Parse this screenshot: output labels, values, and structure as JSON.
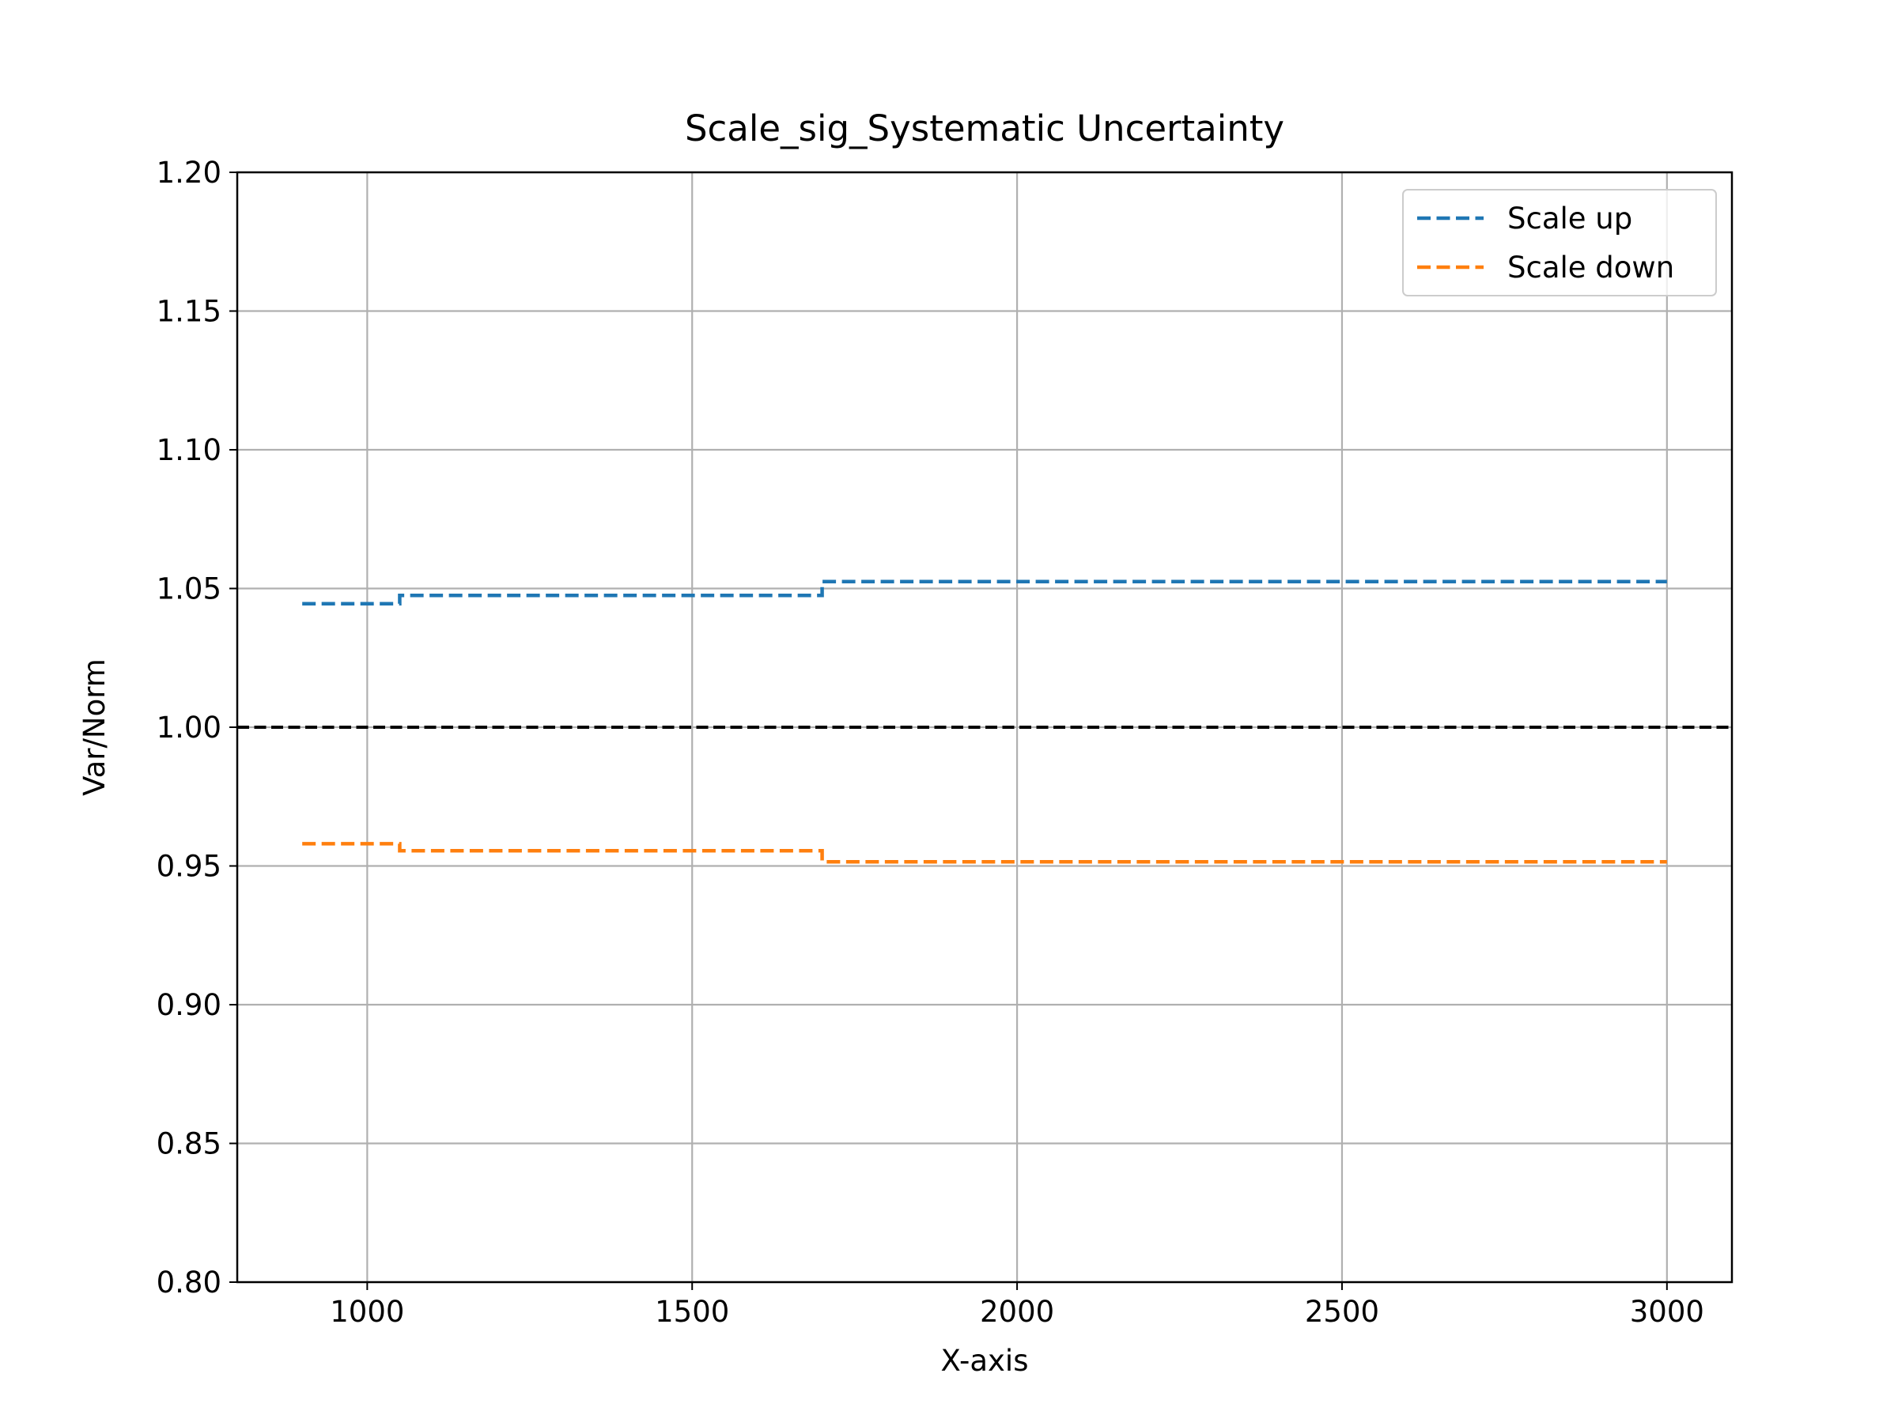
{
  "chart_data": {
    "type": "line",
    "title": "Scale_sig_Systematic Uncertainty",
    "xlabel": "X-axis",
    "ylabel": "Var/Norm",
    "xlim": [
      800,
      3100
    ],
    "ylim": [
      0.8,
      1.2
    ],
    "xticks": [
      1000,
      1500,
      2000,
      2500,
      3000
    ],
    "xtick_labels": [
      "1000",
      "1500",
      "2000",
      "2500",
      "3000"
    ],
    "yticks": [
      0.8,
      0.85,
      0.9,
      0.95,
      1.0,
      1.05,
      1.1,
      1.15,
      1.2
    ],
    "ytick_labels": [
      "0.80",
      "0.85",
      "0.90",
      "0.95",
      "1.00",
      "1.05",
      "1.10",
      "1.15",
      "1.20"
    ],
    "grid": true,
    "legend_position": "top-right",
    "reference_line": {
      "y": 1.0,
      "color": "#000000",
      "style": "dashed"
    },
    "series": [
      {
        "name": "Scale up",
        "color": "#1f77b4",
        "style": "dashed-step",
        "bins": [
          {
            "x_start": 900,
            "x_end": 1050,
            "y": 1.0445
          },
          {
            "x_start": 1050,
            "x_end": 1700,
            "y": 1.0475
          },
          {
            "x_start": 1700,
            "x_end": 3000,
            "y": 1.0525
          }
        ]
      },
      {
        "name": "Scale down",
        "color": "#ff7f0e",
        "style": "dashed-step",
        "bins": [
          {
            "x_start": 900,
            "x_end": 1050,
            "y": 0.958
          },
          {
            "x_start": 1050,
            "x_end": 1700,
            "y": 0.9555
          },
          {
            "x_start": 1700,
            "x_end": 3000,
            "y": 0.9515
          }
        ]
      }
    ]
  }
}
